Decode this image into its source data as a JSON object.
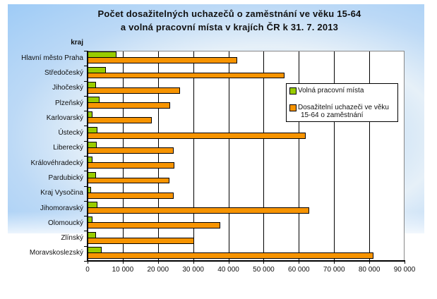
{
  "chart_data": {
    "type": "bar",
    "orientation": "horizontal",
    "title": "Počet dosažitelných uchazečů o zaměstnání ve věku 15-64 a volná pracovní místa v krajích ČR k 31. 7. 2013",
    "title_lines": [
      "Počet dosažitelných uchazečů o zaměstnání ve věku 15-64",
      "a volná pracovní místa v krajích ČR k 31. 7. 2013"
    ],
    "ylabel": "kraj",
    "xlabel": "",
    "xlim": [
      0,
      90000
    ],
    "xticks": [
      "0",
      "10 000",
      "20 000",
      "30 000",
      "40 000",
      "50 000",
      "60 000",
      "70 000",
      "80 000",
      "90 000"
    ],
    "grid": true,
    "legend_position": "upper right inside",
    "categories": [
      "Hlavní město Praha",
      "Středočeský",
      "Jihočeský",
      "Plzeňský",
      "Karlovarský",
      "Ústecký",
      "Liberecký",
      "Královéhradecký",
      "Pardubický",
      "Kraj Vysočina",
      "Jihomoravský",
      "Olomoucký",
      "Zlínský",
      "Moravskoslezský"
    ],
    "series": [
      {
        "name": "Volná pracovní místa",
        "color": "#99cc00",
        "values": [
          8200,
          5200,
          2400,
          3400,
          1500,
          2900,
          2600,
          1500,
          2500,
          1000,
          2900,
          1500,
          2500,
          4000
        ]
      },
      {
        "name": "Dosažitelní uchazeči ve věku 15-64 o zaměstnání",
        "color": "#f79400",
        "values": [
          42400,
          56000,
          26200,
          23400,
          18300,
          62000,
          24400,
          24700,
          23300,
          24500,
          63000,
          37700,
          30300,
          81200
        ]
      }
    ]
  },
  "legend": {
    "item1": "Volná pracovní místa",
    "item2_line1": "Dosažitelní uchazeči ve věku",
    "item2_line2": "15-64 o zaměstnání"
  }
}
